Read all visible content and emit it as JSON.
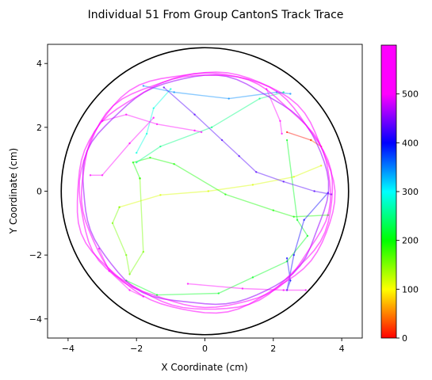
{
  "chart_data": {
    "type": "scatter",
    "title": "Individual 51 From Group CantonS Track Trace",
    "xlabel": "X Coordinate (cm)",
    "ylabel": "Y Coordinate (cm)",
    "xlim": [
      -4.6,
      4.6
    ],
    "ylim": [
      -4.6,
      4.6
    ],
    "xticks": [
      -4,
      -2,
      0,
      2,
      4
    ],
    "yticks": [
      -4,
      -2,
      0,
      2,
      4
    ],
    "xtick_labels": [
      "−4",
      "−2",
      "0",
      "2",
      "4"
    ],
    "ytick_labels": [
      "−4",
      "−2",
      "0",
      "2",
      "4"
    ],
    "arena_circle": {
      "center": [
        0,
        0
      ],
      "radius": 4.2,
      "color": "#000000"
    },
    "colorbar": {
      "colormap": "gist_rainbow",
      "min": 0,
      "max": 600,
      "ticks": [
        0,
        100,
        200,
        300,
        400,
        500
      ],
      "tick_labels": [
        "0",
        "100",
        "200",
        "300",
        "400",
        "500"
      ]
    },
    "grid": false,
    "segments": [
      {
        "t": 5,
        "points": [
          [
            2.4,
            1.85
          ],
          [
            3.1,
            1.6
          ]
        ]
      },
      {
        "t": 40,
        "points": [
          [
            3.1,
            1.6
          ],
          [
            3.4,
            1.4
          ]
        ]
      },
      {
        "t": 120,
        "points": [
          [
            3.4,
            0.8
          ],
          [
            2.6,
            0.45
          ],
          [
            1.4,
            0.2
          ],
          [
            0.1,
            0.0
          ],
          [
            -1.3,
            -0.12
          ],
          [
            -2.5,
            -0.5
          ]
        ]
      },
      {
        "t": 160,
        "points": [
          [
            -2.5,
            -0.5
          ],
          [
            -2.7,
            -1.0
          ],
          [
            -2.3,
            -2.0
          ],
          [
            -2.2,
            -2.6
          ],
          [
            -1.8,
            -1.9
          ],
          [
            -1.9,
            0.4
          ]
        ]
      },
      {
        "t": 200,
        "points": [
          [
            -1.9,
            0.4
          ],
          [
            -2.1,
            0.9
          ],
          [
            -1.6,
            1.05
          ],
          [
            -0.9,
            0.85
          ],
          [
            0.6,
            -0.1
          ],
          [
            2.0,
            -0.6
          ],
          [
            2.6,
            -0.8
          ],
          [
            3.6,
            -0.75
          ]
        ]
      },
      {
        "t": 220,
        "points": [
          [
            -2.3,
            -2.8
          ],
          [
            -1.4,
            -3.25
          ],
          [
            0.4,
            -3.2
          ],
          [
            1.4,
            -2.7
          ],
          [
            2.4,
            -2.2
          ],
          [
            3.0,
            -1.4
          ],
          [
            2.7,
            -0.9
          ],
          [
            2.4,
            1.6
          ]
        ]
      },
      {
        "t": 260,
        "points": [
          [
            -2.0,
            0.9
          ],
          [
            -1.3,
            1.4
          ],
          [
            0.2,
            2.0
          ],
          [
            1.6,
            2.9
          ],
          [
            2.3,
            3.1
          ]
        ]
      },
      {
        "t": 300,
        "points": [
          [
            -1.0,
            3.2
          ],
          [
            -1.5,
            2.6
          ],
          [
            -1.7,
            1.8
          ],
          [
            -2.0,
            1.2
          ]
        ]
      },
      {
        "t": 360,
        "points": [
          [
            -1.8,
            3.3
          ],
          [
            -0.9,
            3.1
          ],
          [
            0.7,
            2.9
          ],
          [
            2.1,
            3.1
          ],
          [
            2.5,
            3.05
          ]
        ]
      },
      {
        "t": 420,
        "points": [
          [
            2.4,
            -2.1
          ],
          [
            2.5,
            -2.8
          ],
          [
            2.4,
            -3.1
          ],
          [
            2.6,
            -2.0
          ],
          [
            2.9,
            -0.9
          ],
          [
            3.6,
            -0.05
          ]
        ]
      },
      {
        "t": 450,
        "points": [
          [
            -1.2,
            3.25
          ],
          [
            -0.3,
            2.4
          ],
          [
            0.5,
            1.6
          ],
          [
            1.0,
            1.1
          ],
          [
            1.5,
            0.6
          ],
          [
            2.3,
            0.3
          ],
          [
            3.2,
            0.0
          ],
          [
            3.7,
            -0.1
          ]
        ]
      },
      {
        "t": 570,
        "points": [
          [
            -3.0,
            2.2
          ],
          [
            -2.3,
            2.4
          ],
          [
            -1.4,
            2.1
          ],
          [
            -0.3,
            1.9
          ],
          [
            -0.1,
            1.85
          ]
        ]
      },
      {
        "t": 575,
        "points": [
          [
            -3.35,
            0.5
          ],
          [
            -3.0,
            0.5
          ],
          [
            -2.2,
            1.5
          ],
          [
            -1.5,
            2.3
          ]
        ]
      },
      {
        "t": 580,
        "points": [
          [
            1.8,
            3.2
          ],
          [
            2.2,
            2.2
          ],
          [
            2.25,
            1.8
          ]
        ]
      },
      {
        "t": 585,
        "points": [
          [
            -0.5,
            -2.9
          ],
          [
            1.1,
            -3.05
          ],
          [
            2.3,
            -3.1
          ],
          [
            2.95,
            -3.1
          ]
        ]
      },
      {
        "t": 590,
        "points": [
          [
            -3.1,
            -1.8
          ],
          [
            -2.8,
            -2.5
          ],
          [
            -2.2,
            -3.1
          ],
          [
            -1.8,
            -3.3
          ]
        ]
      }
    ],
    "perimeter_loops": [
      {
        "t": 480,
        "r": 3.58
      },
      {
        "t": 520,
        "r": 3.64
      },
      {
        "t": 555,
        "r": 3.7
      },
      {
        "t": 595,
        "r": 3.76
      }
    ]
  }
}
